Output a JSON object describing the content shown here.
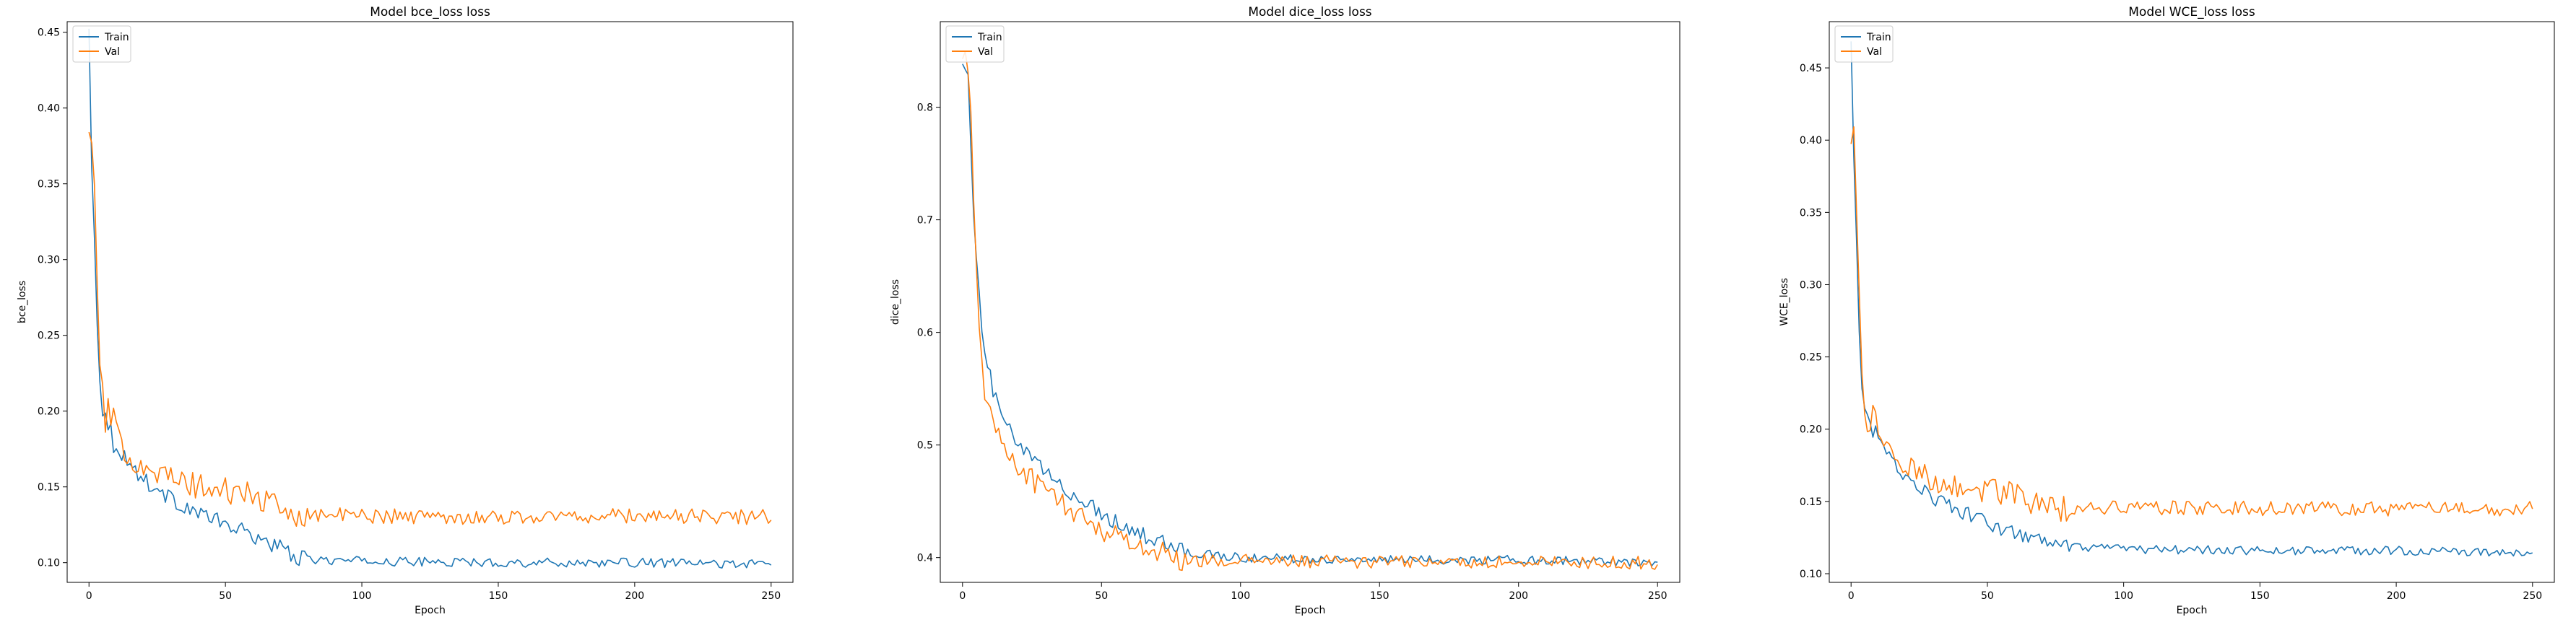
{
  "colors": {
    "train": "#1f77b4",
    "val": "#ff7f0e"
  },
  "chart_data": [
    {
      "type": "line",
      "title": "Model bce_loss loss",
      "xlabel": "Epoch",
      "ylabel": "bce_loss",
      "xlim": [
        -8,
        258
      ],
      "ylim": [
        0.087,
        0.457
      ],
      "xticks": [
        0,
        50,
        100,
        150,
        200,
        250
      ],
      "yticks": [
        0.1,
        0.15,
        0.2,
        0.25,
        0.3,
        0.35,
        0.4,
        0.45
      ],
      "ytick_labels": [
        "0.10",
        "0.15",
        "0.20",
        "0.25",
        "0.30",
        "0.35",
        "0.40",
        "0.45"
      ],
      "legend": {
        "position": "upper-left",
        "entries": [
          "Train",
          "Val"
        ]
      },
      "series": [
        {
          "name": "Train",
          "color": "#1f77b4",
          "x": [
            0,
            1,
            2,
            3,
            4,
            5,
            6,
            8,
            10,
            12,
            15,
            20,
            25,
            30,
            40,
            50,
            60,
            70,
            75,
            80,
            100,
            150,
            200,
            250
          ],
          "y": [
            0.45,
            0.36,
            0.32,
            0.26,
            0.225,
            0.205,
            0.195,
            0.185,
            0.178,
            0.172,
            0.165,
            0.155,
            0.148,
            0.142,
            0.133,
            0.125,
            0.118,
            0.11,
            0.104,
            0.102,
            0.101,
            0.1,
            0.1,
            0.099
          ],
          "noise": 0.003
        },
        {
          "name": "Val",
          "color": "#ff7f0e",
          "x": [
            0,
            1,
            2,
            3,
            4,
            5,
            6,
            8,
            10,
            12,
            15,
            20,
            25,
            30,
            40,
            50,
            60,
            65,
            70,
            80,
            100,
            150,
            200,
            250
          ],
          "y": [
            0.38,
            0.39,
            0.34,
            0.27,
            0.23,
            0.21,
            0.2,
            0.19,
            0.185,
            0.178,
            0.17,
            0.165,
            0.16,
            0.155,
            0.15,
            0.147,
            0.145,
            0.14,
            0.134,
            0.132,
            0.131,
            0.13,
            0.131,
            0.13
          ],
          "noise": 0.005
        }
      ]
    },
    {
      "type": "line",
      "title": "Model dice_loss loss",
      "xlabel": "Epoch",
      "ylabel": "dice_loss",
      "xlim": [
        -8,
        258
      ],
      "ylim": [
        0.378,
        0.876
      ],
      "xticks": [
        0,
        50,
        100,
        150,
        200,
        250
      ],
      "yticks": [
        0.4,
        0.5,
        0.6,
        0.7,
        0.8
      ],
      "ytick_labels": [
        "0.4",
        "0.5",
        "0.6",
        "0.7",
        "0.8"
      ],
      "legend": {
        "position": "upper-left",
        "entries": [
          "Train",
          "Val"
        ]
      },
      "series": [
        {
          "name": "Train",
          "color": "#1f77b4",
          "x": [
            0,
            1,
            2,
            3,
            4,
            5,
            6,
            7,
            8,
            10,
            12,
            15,
            20,
            30,
            40,
            50,
            60,
            70,
            80,
            100,
            150,
            200,
            250
          ],
          "y": [
            0.85,
            0.84,
            0.82,
            0.77,
            0.7,
            0.66,
            0.63,
            0.6,
            0.58,
            0.56,
            0.54,
            0.52,
            0.5,
            0.475,
            0.455,
            0.44,
            0.425,
            0.415,
            0.405,
            0.4,
            0.398,
            0.398,
            0.396
          ],
          "noise": 0.004
        },
        {
          "name": "Val",
          "color": "#ff7f0e",
          "x": [
            0,
            1,
            2,
            3,
            4,
            5,
            6,
            7,
            8,
            10,
            12,
            15,
            20,
            30,
            40,
            50,
            60,
            70,
            80,
            100,
            150,
            200,
            250
          ],
          "y": [
            0.86,
            0.84,
            0.83,
            0.78,
            0.7,
            0.66,
            0.62,
            0.59,
            0.55,
            0.53,
            0.51,
            0.5,
            0.48,
            0.46,
            0.44,
            0.425,
            0.415,
            0.405,
            0.398,
            0.397,
            0.396,
            0.396,
            0.395
          ],
          "noise": 0.006
        }
      ]
    },
    {
      "type": "line",
      "title": "Model WCE_loss loss",
      "xlabel": "Epoch",
      "ylabel": "WCE_loss",
      "xlim": [
        -8,
        258
      ],
      "ylim": [
        0.094,
        0.482
      ],
      "xticks": [
        0,
        50,
        100,
        150,
        200,
        250
      ],
      "yticks": [
        0.1,
        0.15,
        0.2,
        0.25,
        0.3,
        0.35,
        0.4,
        0.45
      ],
      "ytick_labels": [
        "0.10",
        "0.15",
        "0.20",
        "0.25",
        "0.30",
        "0.35",
        "0.40",
        "0.45"
      ],
      "legend": {
        "position": "upper-left",
        "entries": [
          "Train",
          "Val"
        ]
      },
      "series": [
        {
          "name": "Train",
          "color": "#1f77b4",
          "x": [
            0,
            1,
            2,
            3,
            4,
            5,
            6,
            8,
            10,
            12,
            15,
            20,
            25,
            30,
            40,
            50,
            60,
            70,
            80,
            100,
            150,
            200,
            250
          ],
          "y": [
            0.47,
            0.38,
            0.33,
            0.27,
            0.235,
            0.215,
            0.205,
            0.198,
            0.192,
            0.185,
            0.178,
            0.168,
            0.16,
            0.153,
            0.143,
            0.135,
            0.128,
            0.122,
            0.118,
            0.117,
            0.116,
            0.116,
            0.114
          ],
          "noise": 0.003
        },
        {
          "name": "Val",
          "color": "#ff7f0e",
          "x": [
            0,
            1,
            2,
            3,
            4,
            5,
            6,
            8,
            10,
            12,
            15,
            20,
            25,
            30,
            40,
            50,
            60,
            65,
            70,
            80,
            100,
            150,
            200,
            250
          ],
          "y": [
            0.4,
            0.41,
            0.36,
            0.28,
            0.24,
            0.22,
            0.21,
            0.203,
            0.198,
            0.19,
            0.183,
            0.175,
            0.17,
            0.165,
            0.16,
            0.158,
            0.155,
            0.15,
            0.146,
            0.145,
            0.146,
            0.145,
            0.145,
            0.145
          ],
          "noise": 0.005
        }
      ]
    }
  ]
}
